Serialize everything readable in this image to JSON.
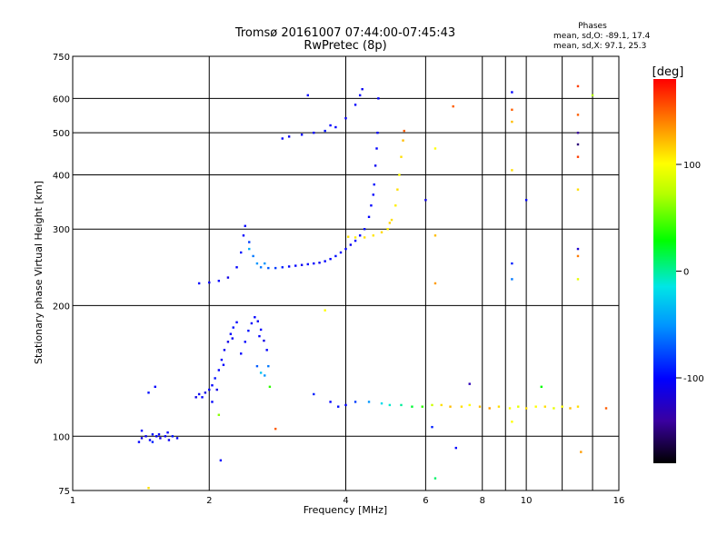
{
  "chart_data": {
    "type": "scatter",
    "title": "Tromsø 20161007 07:44:00-07:45:43",
    "subtitle": "RwPretec (8p)",
    "xlabel": "Frequency [MHz]",
    "ylabel": "Stationary phase Virtual Height [km]",
    "xscale": "log",
    "yscale": "log",
    "xlim": [
      1,
      16
    ],
    "ylim": [
      75,
      750
    ],
    "x_ticks": [
      1,
      2,
      4,
      6,
      8,
      10,
      16
    ],
    "x_tick_labels": [
      "1",
      "2",
      "4",
      "6",
      "8",
      "10",
      "16"
    ],
    "x_minor_ticks": [
      9,
      12,
      14
    ],
    "y_ticks": [
      75,
      100,
      200,
      300,
      400,
      500,
      600,
      750
    ],
    "y_tick_labels": [
      "75",
      "100",
      "200",
      "300",
      "400",
      "500",
      "600",
      "750"
    ],
    "grid": true,
    "phases": {
      "title": "Phases",
      "line_o": "mean, sd,O: -89.1, 17.4",
      "line_x": "mean, sd,X:  97.1, 25.3"
    },
    "colorbar": {
      "label": "[deg]",
      "range": [
        -180,
        180
      ],
      "ticks": [
        100,
        0,
        -100
      ],
      "tick_labels": [
        "100",
        "0",
        "-100"
      ]
    },
    "points": [
      [
        1.4,
        97,
        -100
      ],
      [
        1.42,
        99,
        -110
      ],
      [
        1.45,
        100,
        -105
      ],
      [
        1.48,
        98,
        -100
      ],
      [
        1.5,
        101,
        -95
      ],
      [
        1.53,
        100,
        -100
      ],
      [
        1.56,
        99,
        -110
      ],
      [
        1.6,
        100,
        -100
      ],
      [
        1.63,
        98,
        -105
      ],
      [
        1.66,
        100,
        -95
      ],
      [
        1.7,
        99,
        -100
      ],
      [
        1.42,
        103,
        -100
      ],
      [
        1.5,
        97,
        -90
      ],
      [
        1.55,
        101,
        -100
      ],
      [
        1.62,
        102,
        -100
      ],
      [
        1.47,
        126,
        -95
      ],
      [
        1.52,
        130,
        -100
      ],
      [
        1.87,
        123,
        -110
      ],
      [
        1.9,
        125,
        -105
      ],
      [
        1.93,
        123,
        -100
      ],
      [
        1.96,
        126,
        -110
      ],
      [
        2.0,
        128,
        -100
      ],
      [
        2.03,
        131,
        -100
      ],
      [
        2.06,
        136,
        -95
      ],
      [
        2.1,
        142,
        -100
      ],
      [
        2.13,
        150,
        -100
      ],
      [
        2.16,
        158,
        -105
      ],
      [
        2.2,
        165,
        -110
      ],
      [
        2.23,
        172,
        -100
      ],
      [
        2.26,
        178,
        -95
      ],
      [
        2.3,
        183,
        -100
      ],
      [
        2.03,
        120,
        -100
      ],
      [
        2.08,
        128,
        -110
      ],
      [
        2.15,
        146,
        -100
      ],
      [
        2.25,
        168,
        -105
      ],
      [
        2.35,
        155,
        -100
      ],
      [
        2.4,
        165,
        -100
      ],
      [
        2.44,
        175,
        -95
      ],
      [
        2.48,
        182,
        -100
      ],
      [
        2.52,
        188,
        -100
      ],
      [
        2.56,
        184,
        -105
      ],
      [
        2.6,
        176,
        -100
      ],
      [
        2.64,
        166,
        -110
      ],
      [
        2.68,
        158,
        -100
      ],
      [
        2.55,
        145,
        -70
      ],
      [
        2.6,
        140,
        -30
      ],
      [
        2.65,
        138,
        -50
      ],
      [
        2.72,
        130,
        40
      ],
      [
        2.7,
        145,
        -60
      ],
      [
        2.58,
        170,
        -100
      ],
      [
        2.1,
        112,
        60
      ],
      [
        2.8,
        104,
        150
      ],
      [
        2.12,
        88,
        -100
      ],
      [
        1.9,
        225,
        -100
      ],
      [
        2.0,
        226,
        -105
      ],
      [
        2.1,
        228,
        -100
      ],
      [
        2.2,
        232,
        -110
      ],
      [
        2.3,
        245,
        -100
      ],
      [
        2.35,
        265,
        -95
      ],
      [
        2.38,
        290,
        -100
      ],
      [
        2.4,
        305,
        -100
      ],
      [
        2.45,
        280,
        -80
      ],
      [
        2.5,
        260,
        -60
      ],
      [
        2.55,
        250,
        -50
      ],
      [
        2.6,
        245,
        -60
      ],
      [
        2.7,
        244,
        -70
      ],
      [
        2.8,
        244,
        -80
      ],
      [
        2.9,
        245,
        -90
      ],
      [
        3.0,
        246,
        -100
      ],
      [
        3.1,
        247,
        -100
      ],
      [
        3.2,
        248,
        -105
      ],
      [
        3.3,
        249,
        -100
      ],
      [
        3.4,
        250,
        -100
      ],
      [
        3.5,
        251,
        -105
      ],
      [
        3.6,
        253,
        -100
      ],
      [
        3.7,
        256,
        -100
      ],
      [
        3.8,
        260,
        -95
      ],
      [
        3.9,
        265,
        -100
      ],
      [
        4.0,
        270,
        -100
      ],
      [
        4.1,
        276,
        -105
      ],
      [
        4.2,
        282,
        -100
      ],
      [
        4.3,
        290,
        -100
      ],
      [
        4.4,
        300,
        -95
      ],
      [
        4.5,
        320,
        -100
      ],
      [
        4.6,
        360,
        -100
      ],
      [
        4.65,
        420,
        -105
      ],
      [
        4.7,
        500,
        -100
      ],
      [
        4.72,
        600,
        -100
      ],
      [
        4.62,
        380,
        -95
      ],
      [
        4.68,
        460,
        -100
      ],
      [
        4.55,
        340,
        -100
      ],
      [
        2.45,
        270,
        -40
      ],
      [
        2.65,
        250,
        -50
      ],
      [
        4.05,
        288,
        110
      ],
      [
        4.2,
        287,
        105
      ],
      [
        4.4,
        287,
        110
      ],
      [
        4.6,
        290,
        108
      ],
      [
        4.8,
        295,
        112
      ],
      [
        4.95,
        300,
        105
      ],
      [
        5.05,
        315,
        110
      ],
      [
        5.15,
        340,
        105
      ],
      [
        5.2,
        370,
        110
      ],
      [
        5.25,
        400,
        100
      ],
      [
        5.3,
        440,
        110
      ],
      [
        5.35,
        480,
        120
      ],
      [
        5.38,
        505,
        150
      ],
      [
        5.0,
        310,
        115
      ],
      [
        2.9,
        485,
        -100
      ],
      [
        3.0,
        490,
        -105
      ],
      [
        3.2,
        495,
        -100
      ],
      [
        3.4,
        500,
        -100
      ],
      [
        3.6,
        505,
        -95
      ],
      [
        3.8,
        515,
        -100
      ],
      [
        4.0,
        540,
        -105
      ],
      [
        4.2,
        580,
        -100
      ],
      [
        4.3,
        610,
        -100
      ],
      [
        4.35,
        630,
        -105
      ],
      [
        3.7,
        520,
        -100
      ],
      [
        3.4,
        125,
        -90
      ],
      [
        3.7,
        120,
        -100
      ],
      [
        3.85,
        117,
        -95
      ],
      [
        4.0,
        118,
        -100
      ],
      [
        4.2,
        120,
        -80
      ],
      [
        4.5,
        120,
        -50
      ],
      [
        4.8,
        119,
        -20
      ],
      [
        5.0,
        118,
        -10
      ],
      [
        5.3,
        118,
        0
      ],
      [
        5.6,
        117,
        20
      ],
      [
        5.9,
        117,
        40
      ],
      [
        6.2,
        118,
        80
      ],
      [
        6.5,
        118,
        110
      ],
      [
        6.8,
        117,
        120
      ],
      [
        7.2,
        117,
        110
      ],
      [
        7.5,
        118,
        100
      ],
      [
        7.9,
        117,
        120
      ],
      [
        8.3,
        116,
        130
      ],
      [
        8.7,
        117,
        110
      ],
      [
        9.2,
        116,
        100
      ],
      [
        9.6,
        117,
        90
      ],
      [
        10.0,
        116,
        110
      ],
      [
        10.5,
        117,
        100
      ],
      [
        11.0,
        117,
        110
      ],
      [
        11.5,
        116,
        90
      ],
      [
        12.0,
        117,
        100
      ],
      [
        12.5,
        116,
        120
      ],
      [
        13.0,
        117,
        110
      ],
      [
        15.0,
        116,
        150
      ],
      [
        10.8,
        130,
        30
      ],
      [
        9.3,
        108,
        100
      ],
      [
        6.2,
        105,
        -90
      ],
      [
        7.5,
        132,
        -130
      ],
      [
        7.0,
        94,
        -100
      ],
      [
        6.3,
        460,
        100
      ],
      [
        6.3,
        290,
        120
      ],
      [
        6.3,
        225,
        130
      ],
      [
        6.9,
        575,
        150
      ],
      [
        6.0,
        350,
        -110
      ],
      [
        6.3,
        80,
        10
      ],
      [
        9.3,
        620,
        -100
      ],
      [
        9.3,
        565,
        150
      ],
      [
        9.3,
        530,
        120
      ],
      [
        9.3,
        410,
        110
      ],
      [
        9.3,
        250,
        -90
      ],
      [
        9.3,
        230,
        -60
      ],
      [
        10.0,
        350,
        -100
      ],
      [
        13.0,
        640,
        160
      ],
      [
        13.0,
        550,
        150
      ],
      [
        13.0,
        500,
        -140
      ],
      [
        13.0,
        470,
        -150
      ],
      [
        13.0,
        440,
        160
      ],
      [
        13.0,
        370,
        110
      ],
      [
        13.0,
        270,
        -120
      ],
      [
        13.0,
        260,
        140
      ],
      [
        13.0,
        230,
        90
      ],
      [
        14.0,
        610,
        70
      ],
      [
        13.2,
        92,
        130
      ],
      [
        1.47,
        76,
        110
      ],
      [
        3.3,
        610,
        -100
      ],
      [
        3.6,
        195,
        100
      ]
    ]
  }
}
